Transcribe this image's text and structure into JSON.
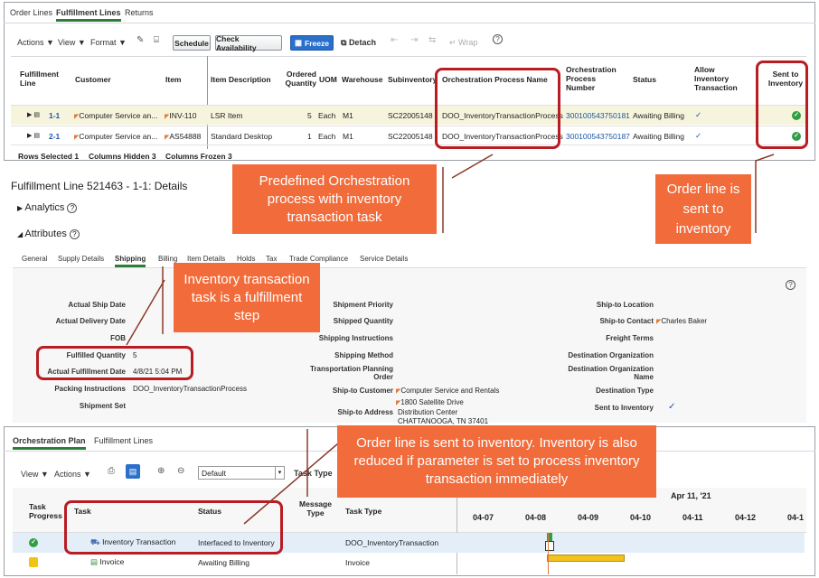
{
  "top_tabs": [
    "Order Lines",
    "Fulfillment Lines",
    "Returns"
  ],
  "toolbar": {
    "actions": "Actions ▼",
    "view": "View ▼",
    "format": "Format ▼",
    "schedule": "Schedule",
    "check_availability": "Check Availability",
    "freeze": "Freeze",
    "detach": "Detach",
    "wrap": "Wrap"
  },
  "table": {
    "headers": {
      "fulfillment_line": "Fulfillment Line",
      "customer": "Customer",
      "item": "Item",
      "item_description": "Item Description",
      "ordered_quantity": "Ordered Quantity",
      "uom": "UOM",
      "warehouse": "Warehouse",
      "subinventory": "Subinventory",
      "orchestration_process_name": "Orchestration Process Name",
      "orchestration_process_number": "Orchestration Process Number",
      "status": "Status",
      "allow_inventory_transaction": "Allow Inventory Transaction",
      "sent_to_inventory": "Sent to Inventory"
    },
    "rows": [
      {
        "line": "1-1",
        "customer": "Computer Service an...",
        "item": "INV-110",
        "description": "LSR Item",
        "qty": "5",
        "uom": "Each",
        "warehouse": "M1",
        "subinventory": "SC22005148",
        "process_name": "DOO_InventoryTransactionProcess",
        "process_number": "300100543750181",
        "status": "Awaiting Billing",
        "allow": "✓"
      },
      {
        "line": "2-1",
        "customer": "Computer Service an...",
        "item": "AS54888",
        "description": "Standard Desktop",
        "qty": "1",
        "uom": "Each",
        "warehouse": "M1",
        "subinventory": "SC22005148",
        "process_name": "DOO_InventoryTransactionProcess",
        "process_number": "300100543750187",
        "status": "Awaiting Billing",
        "allow": "✓"
      }
    ],
    "footer": {
      "rows_selected": "Rows Selected  1",
      "columns_hidden": "Columns Hidden  3",
      "columns_frozen": "Columns Frozen  3"
    }
  },
  "details": {
    "title": "Fulfillment Line 521463 - 1-1: Details",
    "analytics": "Analytics",
    "attributes": "Attributes",
    "tabs": [
      "General",
      "Supply Details",
      "Shipping",
      "Billing",
      "Item Details",
      "Holds",
      "Tax",
      "Trade Compliance",
      "Service Details"
    ],
    "col1": [
      {
        "label": "Actual Ship Date",
        "value": ""
      },
      {
        "label": "Actual Delivery Date",
        "value": ""
      },
      {
        "label": "FOB",
        "value": ""
      },
      {
        "label": "Fulfilled Quantity",
        "value": "5"
      },
      {
        "label": "Actual Fulfillment Date",
        "value": "4/8/21 5:04 PM"
      },
      {
        "label": "Packing Instructions",
        "value": "DOO_InventoryTransactionProcess"
      },
      {
        "label": "Shipment Set",
        "value": ""
      }
    ],
    "col2": {
      "shipment_priority": "Shipment Priority",
      "shipped_quantity": "Shipped Quantity",
      "shipping_instructions": "Shipping Instructions",
      "shipping_method": "Shipping Method",
      "transportation_planning_order": "Transportation Planning Order",
      "ship_to_customer": "Ship-to Customer",
      "ship_to_customer_value": "Computer Service and Rentals",
      "ship_to_address": "Ship-to Address",
      "address_line1": "1800 Satellite Drive",
      "address_line2": "Distribution Center",
      "address_line3": "CHATTANOOGA, TN 37401"
    },
    "col3": {
      "ship_to_location": "Ship-to Location",
      "ship_to_contact": "Ship-to Contact",
      "ship_to_contact_value": "Charles Baker",
      "freight_terms": "Freight Terms",
      "destination_organization": "Destination Organization",
      "destination_organization_name": "Destination Organization Name",
      "destination_type": "Destination Type",
      "sent_to_inventory": "Sent to Inventory",
      "sent_to_inventory_value": "✓"
    }
  },
  "orchestration": {
    "tabs": [
      "Orchestration Plan",
      "Fulfillment Lines"
    ],
    "view": "View ▼",
    "actions": "Actions ▼",
    "default": "Default",
    "task_type_label": "Task Type",
    "headers": {
      "task_progress": "Task Progress",
      "task": "Task",
      "status": "Status",
      "message_type": "Message Type",
      "task_type": "Task Type"
    },
    "gantt_month": "Apr 11, '21",
    "gantt_days": [
      "04-07",
      "04-08",
      "04-09",
      "04-10",
      "04-11",
      "04-12",
      "04-1"
    ],
    "rows": [
      {
        "task": "Inventory Transaction",
        "status": "Interfaced to Inventory",
        "task_type": "DOO_InventoryTransaction"
      },
      {
        "task": "Invoice",
        "status": "Awaiting Billing",
        "task_type": "Invoice"
      }
    ]
  },
  "callouts": {
    "predefined": "Predefined Orchestration process with inventory transaction task",
    "sent": "Order line is sent to inventory",
    "step": "Inventory transaction task is a fulfillment step",
    "reduced": "Order line is sent to inventory. Inventory is also reduced if parameter is set to process inventory transaction immediately"
  },
  "colors": {
    "callout": "#f26b3a",
    "highlight": "#b81d24",
    "accent": "#2f7d3a",
    "link": "#1a56a8"
  }
}
